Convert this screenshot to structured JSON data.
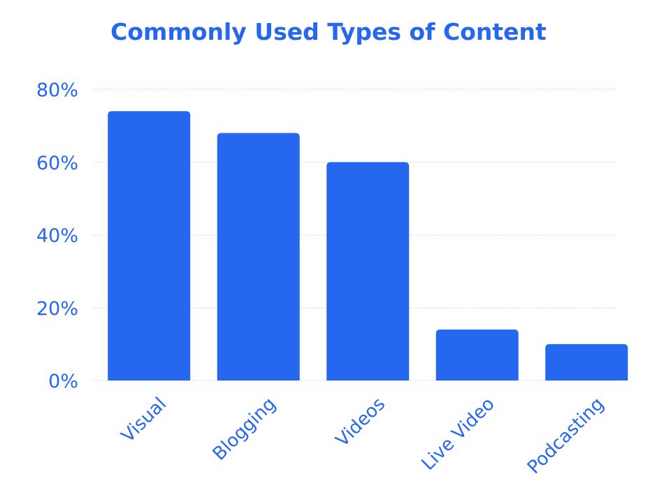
{
  "colors": {
    "bar": "#2567ee",
    "text": "#2567ee",
    "grid": "#2567ee",
    "background": "#ffffff"
  },
  "chart_data": {
    "type": "bar",
    "title": "Commonly Used Types of Content",
    "xlabel": "",
    "ylabel": "",
    "categories": [
      "Visual",
      "Blogging",
      "Videos",
      "Live Video",
      "Podcasting"
    ],
    "values": [
      74,
      68,
      60,
      14,
      10
    ],
    "ylim": [
      0,
      80
    ],
    "yticks": [
      0,
      20,
      40,
      60,
      80
    ],
    "ytick_labels": [
      "0%",
      "20%",
      "40%",
      "60%",
      "80%"
    ],
    "grid": true,
    "grid_style": "dotted",
    "legend": "none"
  }
}
